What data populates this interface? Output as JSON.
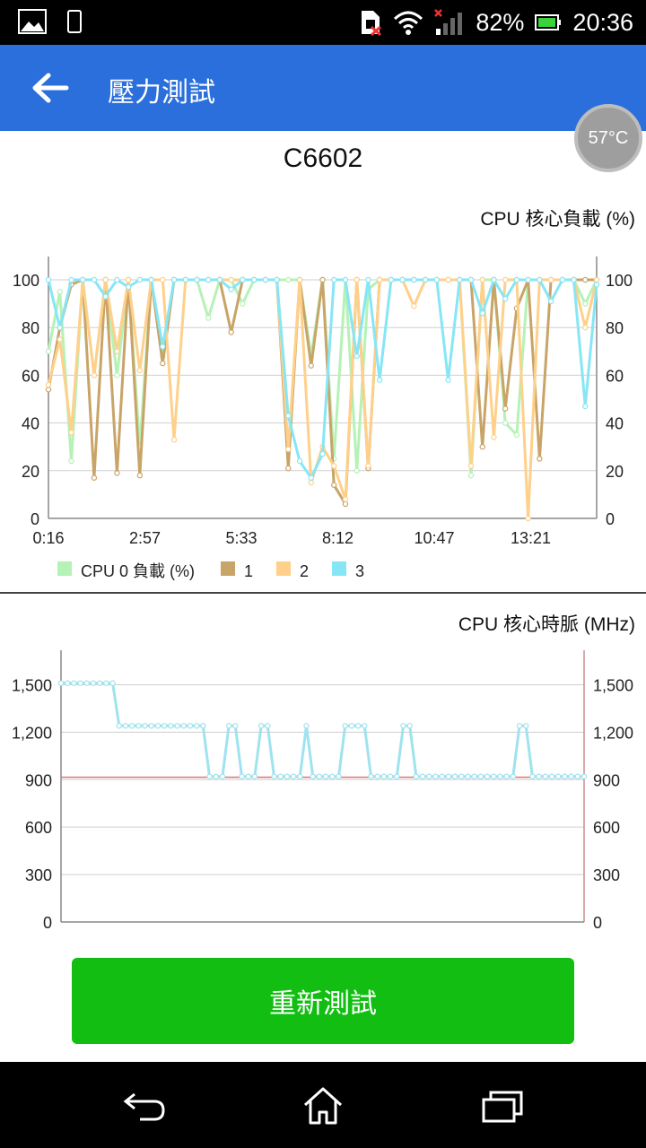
{
  "status": {
    "battery": "82%",
    "time": "20:36"
  },
  "appbar": {
    "title": "壓力測試"
  },
  "temperature": "57°C",
  "device": "C6602",
  "load_chart": {
    "title": "CPU 核心負載 (%)",
    "chart_data": {
      "type": "line",
      "title": "CPU 核心負載 (%)",
      "ylim": [
        0,
        100
      ],
      "y_ticks": [
        "0",
        "20",
        "40",
        "60",
        "80",
        "100"
      ],
      "x_ticks": [
        "0:16",
        "2:57",
        "5:33",
        "8:12",
        "10:47",
        "13:21"
      ],
      "legend": [
        {
          "label": "CPU 0 負載 (%)",
          "color": "#b5f2b5"
        },
        {
          "label": "1",
          "color": "#c9a468"
        },
        {
          "label": "2",
          "color": "#ffd08a"
        },
        {
          "label": "3",
          "color": "#87e6f5"
        }
      ],
      "series": [
        {
          "color": "#b5f2b5",
          "values": [
            70,
            95,
            24,
            100,
            60,
            100,
            60,
            100,
            30,
            100,
            68,
            100,
            100,
            100,
            84,
            100,
            100,
            90,
            100,
            100,
            100,
            100,
            100,
            68,
            100,
            25,
            100,
            20,
            96,
            100,
            100,
            100,
            100,
            100,
            100,
            100,
            100,
            18,
            100,
            100,
            40,
            35,
            100,
            100,
            100,
            100,
            100,
            90,
            100
          ]
        },
        {
          "color": "#c9a468",
          "values": [
            54,
            80,
            98,
            100,
            17,
            100,
            19,
            100,
            18,
            100,
            65,
            100,
            100,
            100,
            100,
            100,
            78,
            100,
            100,
            100,
            100,
            21,
            100,
            64,
            100,
            14,
            6,
            100,
            21,
            100,
            100,
            100,
            100,
            100,
            100,
            100,
            100,
            100,
            30,
            100,
            46,
            88,
            100,
            25,
            100,
            100,
            100,
            100,
            100
          ]
        },
        {
          "color": "#ffd08a",
          "values": [
            56,
            75,
            36,
            100,
            60,
            100,
            70,
            100,
            62,
            100,
            100,
            33,
            100,
            100,
            100,
            100,
            100,
            100,
            100,
            100,
            100,
            29,
            100,
            15,
            30,
            22,
            8,
            100,
            22,
            100,
            100,
            100,
            89,
            100,
            100,
            100,
            100,
            22,
            100,
            34,
            100,
            100,
            0,
            100,
            100,
            100,
            100,
            80,
            100
          ]
        },
        {
          "color": "#87e6f5",
          "values": [
            100,
            80,
            100,
            100,
            100,
            93,
            100,
            97,
            100,
            100,
            72,
            100,
            100,
            100,
            100,
            100,
            96,
            100,
            100,
            100,
            100,
            43,
            24,
            17,
            27,
            100,
            100,
            68,
            100,
            58,
            100,
            100,
            100,
            100,
            100,
            58,
            100,
            100,
            86,
            100,
            92,
            100,
            100,
            100,
            91,
            100,
            100,
            47,
            98
          ]
        }
      ]
    }
  },
  "clock_chart": {
    "title": "CPU 核心時脈 (MHz)",
    "chart_data": {
      "type": "line",
      "title": "CPU 核心時脈 (MHz)",
      "ylim": [
        0,
        1650
      ],
      "y_ticks": [
        "0",
        "300",
        "600",
        "900",
        "1,200",
        "1,500"
      ],
      "x_ticks": [
        "0:16",
        "2:57",
        "5:33",
        "8:12",
        "10:47",
        "13:21"
      ],
      "reference_line": 915,
      "series": [
        {
          "color": "#9fe3ee",
          "values": [
            1510,
            1510,
            1510,
            1510,
            1510,
            1510,
            1510,
            1510,
            1510,
            1240,
            1240,
            1240,
            1240,
            1240,
            1240,
            1240,
            1240,
            1240,
            1240,
            1240,
            1240,
            1240,
            1240,
            920,
            920,
            920,
            1240,
            1240,
            920,
            920,
            920,
            1240,
            1240,
            920,
            920,
            920,
            920,
            920,
            1240,
            920,
            920,
            920,
            920,
            920,
            1240,
            1240,
            1240,
            1240,
            920,
            920,
            920,
            920,
            920,
            1240,
            1240,
            920,
            920,
            920,
            920,
            920,
            920,
            920,
            920,
            920,
            920,
            920,
            920,
            920,
            920,
            920,
            920,
            1240,
            1240,
            920,
            920,
            920,
            920,
            920,
            920,
            920,
            920,
            920
          ]
        }
      ]
    }
  },
  "retest_button": "重新測試"
}
